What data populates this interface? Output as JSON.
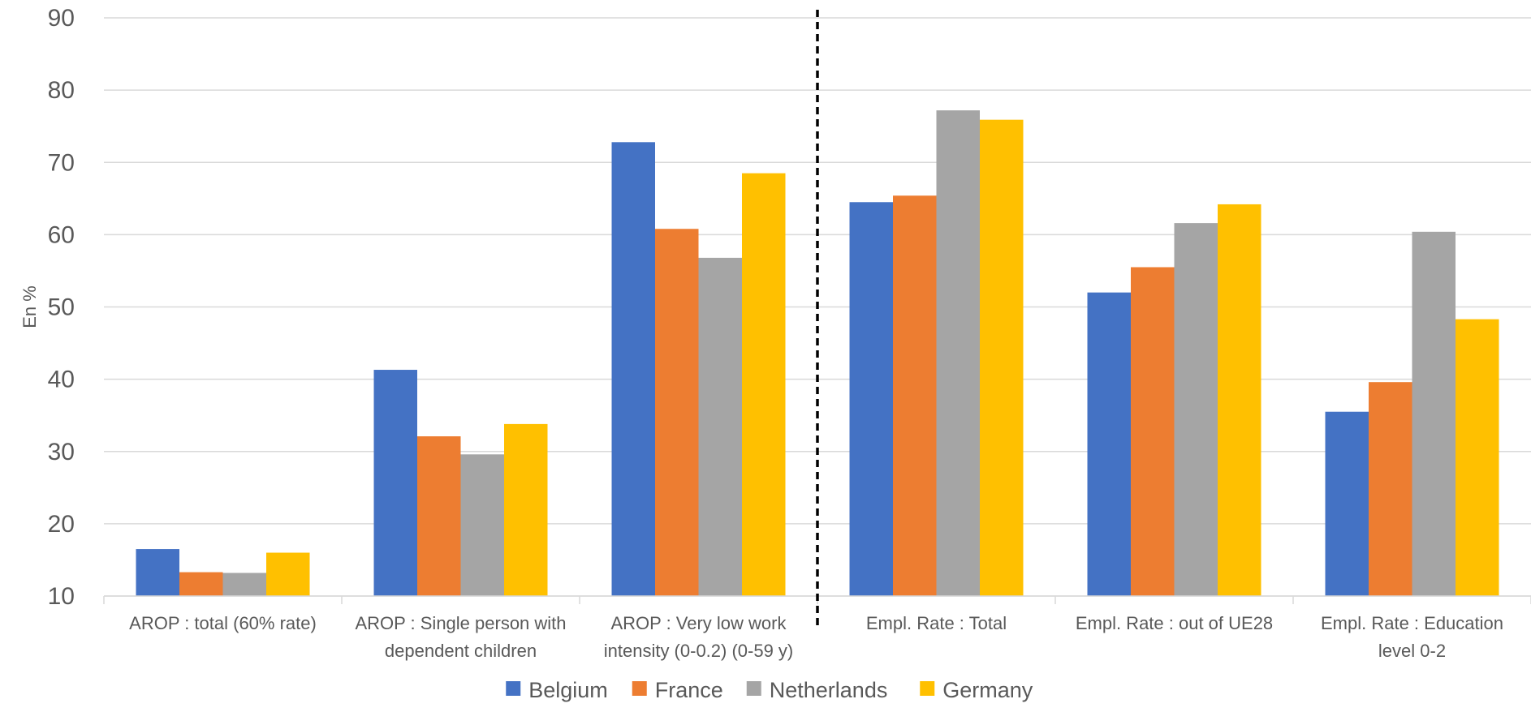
{
  "chart_data": {
    "type": "bar",
    "title": "",
    "xlabel": "",
    "ylabel": "En %",
    "ylim": [
      10,
      90
    ],
    "yticks": [
      10,
      20,
      30,
      40,
      50,
      60,
      70,
      80,
      90
    ],
    "grid": true,
    "legend_position": "bottom",
    "categories": [
      [
        "AROP : total (60% rate)"
      ],
      [
        "AROP : Single person with",
        "dependent children"
      ],
      [
        "AROP : Very low work",
        "intensity (0-0.2) (0-59 y)"
      ],
      [
        "Empl. Rate : Total"
      ],
      [
        "Empl. Rate : out of UE28"
      ],
      [
        "Empl. Rate : Education",
        "level 0-2"
      ]
    ],
    "series": [
      {
        "name": "Belgium",
        "color": "#4472C4",
        "values": [
          16.5,
          41.3,
          72.8,
          64.5,
          52.0,
          35.5
        ]
      },
      {
        "name": "France",
        "color": "#ED7D31",
        "values": [
          13.3,
          32.1,
          60.8,
          65.4,
          55.5,
          39.6
        ]
      },
      {
        "name": "Netherlands",
        "color": "#A5A5A5",
        "values": [
          13.2,
          29.6,
          56.8,
          77.2,
          61.6,
          60.4
        ]
      },
      {
        "name": "Germany",
        "color": "#FFC000",
        "values": [
          16.0,
          33.8,
          68.5,
          75.9,
          64.2,
          48.3
        ]
      }
    ],
    "divider_after_category": 2
  }
}
